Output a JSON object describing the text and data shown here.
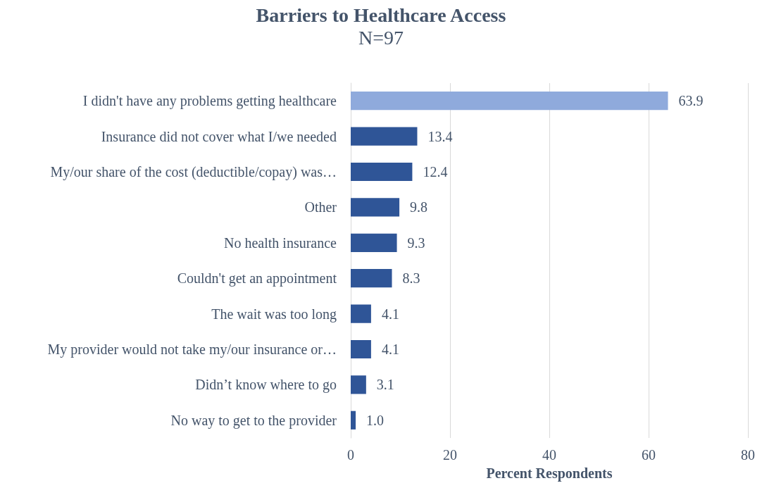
{
  "chart_data": {
    "type": "bar",
    "orientation": "horizontal",
    "title": "Barriers to Healthcare Access",
    "subtitle": "N=97",
    "xlabel": "Percent Respondents",
    "categories": [
      "I didn't have any problems getting healthcare",
      "Insurance did not cover what I/we needed",
      "My/our share of the cost (deductible/copay) was…",
      "Other",
      "No health insurance",
      "Couldn't get an appointment",
      "The wait was too long",
      "My provider would not take my/our insurance or…",
      "Didn’t know where to go",
      "No way to get to the provider"
    ],
    "values": [
      63.9,
      13.4,
      12.4,
      9.8,
      9.3,
      8.3,
      4.1,
      4.1,
      3.1,
      1.0
    ],
    "value_labels": [
      "63.9",
      "13.4",
      "12.4",
      "9.8",
      "9.3",
      "8.3",
      "4.1",
      "4.1",
      "3.1",
      "1.0"
    ],
    "colors": [
      "#8faadc",
      "#2f5597",
      "#2f5597",
      "#2f5597",
      "#2f5597",
      "#2f5597",
      "#2f5597",
      "#2f5597",
      "#2f5597",
      "#2f5597"
    ],
    "xlim": [
      0,
      80
    ],
    "xticks": [
      0,
      20,
      40,
      60,
      80
    ],
    "grid": "x"
  }
}
